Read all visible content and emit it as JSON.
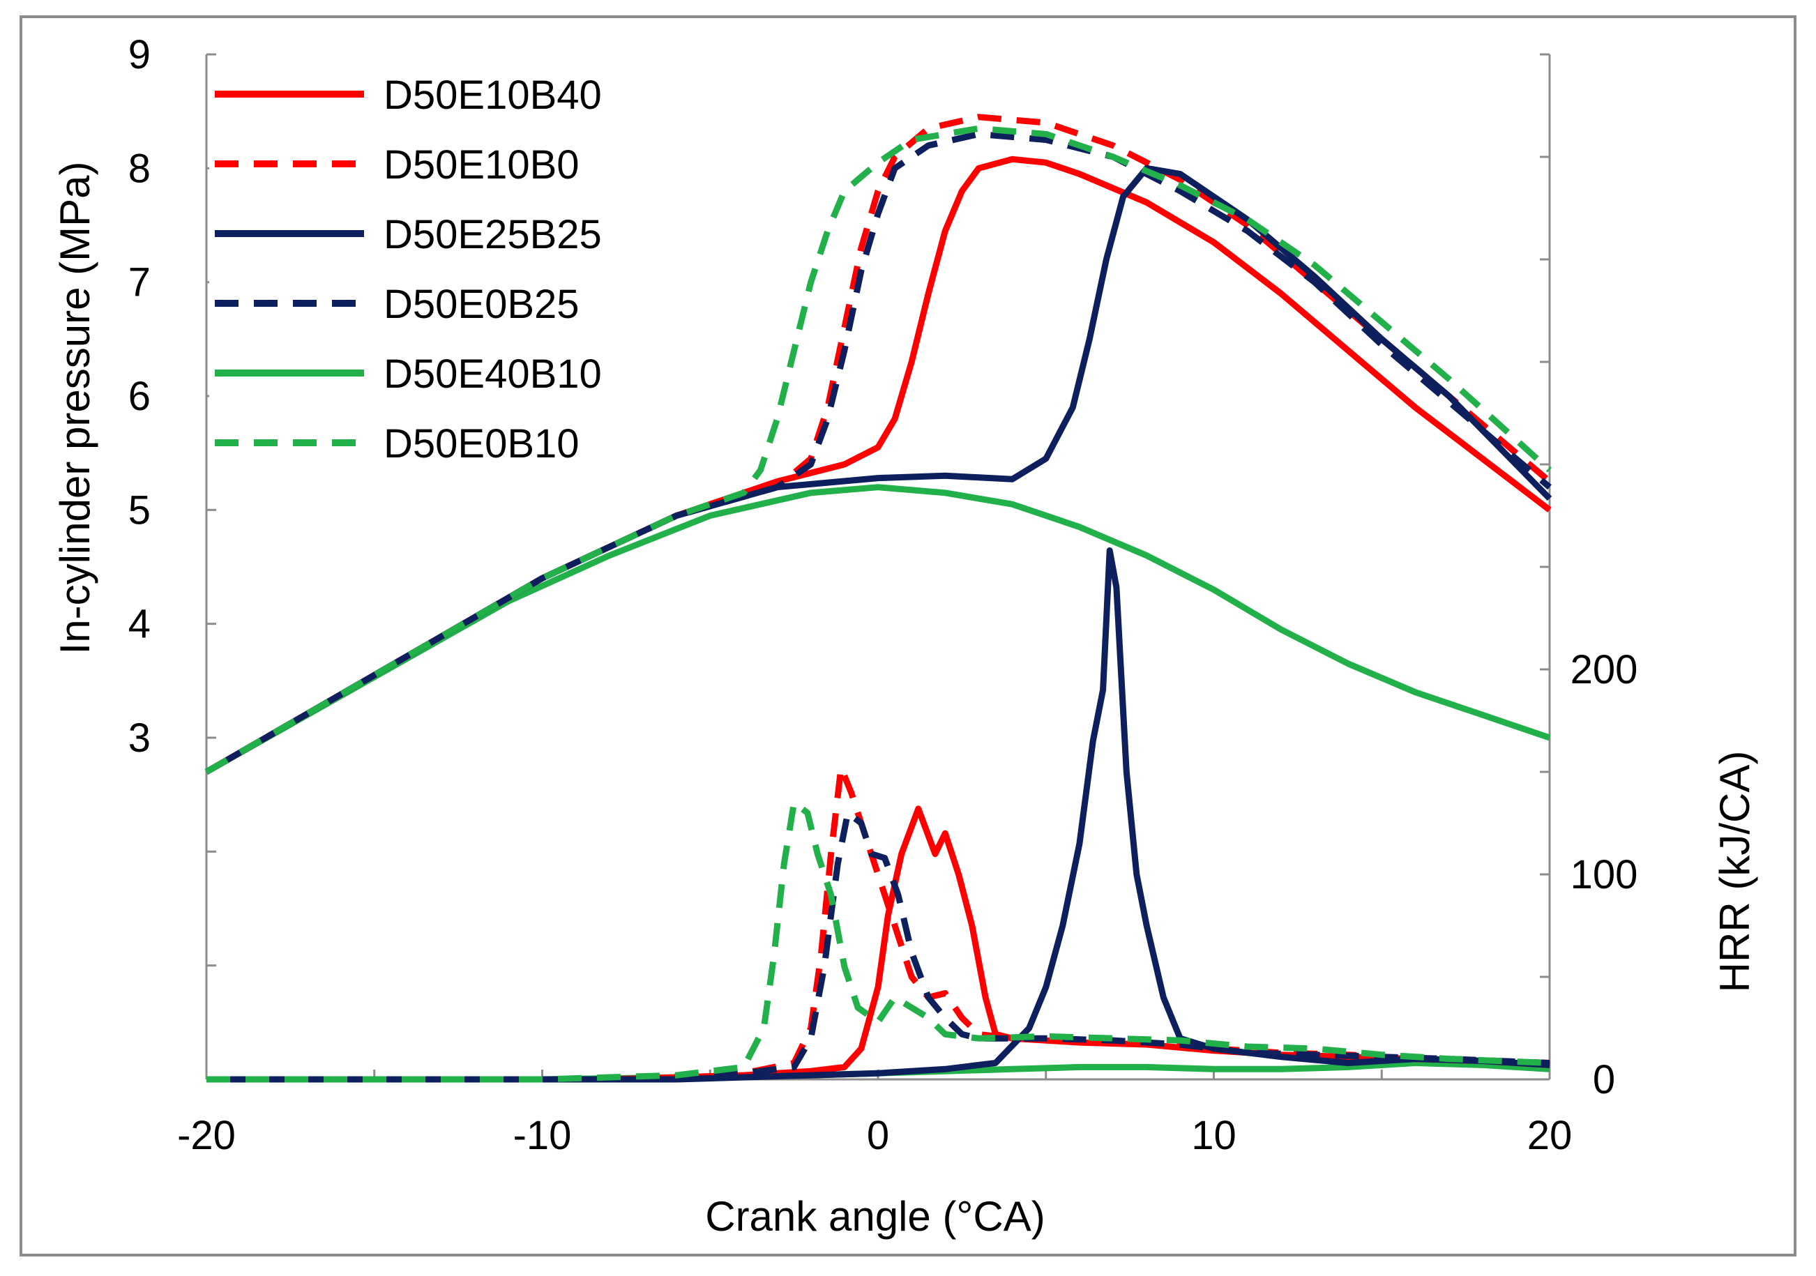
{
  "chart_data": {
    "type": "line",
    "title": "",
    "xlabel": "Crank angle (°CA)",
    "ylabel_left": "In-cylinder pressure (MPa)",
    "ylabel_right": "HRR (kJ/CA)",
    "xlim": [
      -20,
      20
    ],
    "xticks": [
      "-20",
      "-10",
      "0",
      "10",
      "20"
    ],
    "xtick_values": [
      -20,
      -10,
      0,
      10,
      20
    ],
    "ylim_left": [
      0,
      9
    ],
    "yticks_left": [
      "3",
      "4",
      "5",
      "6",
      "7",
      "8",
      "9"
    ],
    "ytick_values_left": [
      3,
      4,
      5,
      6,
      7,
      8,
      9
    ],
    "ylim_right": [
      0,
      500
    ],
    "yticks_right": [
      "0",
      "100",
      "200"
    ],
    "ytick_values_right": [
      0,
      100,
      200
    ],
    "legend_position": "top-left",
    "series": [
      {
        "name": "D50E10B40",
        "color": "#ff0000",
        "dash": "solid",
        "pressure": [
          [
            -20,
            2.7
          ],
          [
            -15,
            3.55
          ],
          [
            -10,
            4.4
          ],
          [
            -6,
            4.95
          ],
          [
            -3,
            5.25
          ],
          [
            -1,
            5.4
          ],
          [
            0,
            5.55
          ],
          [
            0.5,
            5.8
          ],
          [
            1,
            6.3
          ],
          [
            1.5,
            6.9
          ],
          [
            2,
            7.45
          ],
          [
            2.5,
            7.8
          ],
          [
            3,
            8.0
          ],
          [
            4,
            8.08
          ],
          [
            5,
            8.05
          ],
          [
            6,
            7.95
          ],
          [
            8,
            7.7
          ],
          [
            10,
            7.35
          ],
          [
            12,
            6.9
          ],
          [
            14,
            6.4
          ],
          [
            16,
            5.9
          ],
          [
            18,
            5.45
          ],
          [
            20,
            5.0
          ]
        ],
        "hrr": [
          [
            -20,
            0
          ],
          [
            -8,
            0
          ],
          [
            -4,
            2
          ],
          [
            -2,
            4
          ],
          [
            -1,
            6
          ],
          [
            -0.5,
            15
          ],
          [
            0,
            45
          ],
          [
            0.3,
            80
          ],
          [
            0.7,
            110
          ],
          [
            1.2,
            132
          ],
          [
            1.7,
            110
          ],
          [
            2,
            120
          ],
          [
            2.4,
            100
          ],
          [
            2.8,
            75
          ],
          [
            3.2,
            40
          ],
          [
            3.5,
            22
          ],
          [
            4,
            20
          ],
          [
            6,
            18
          ],
          [
            8,
            17
          ],
          [
            10,
            14
          ],
          [
            12,
            12
          ],
          [
            14,
            11
          ],
          [
            16,
            10
          ],
          [
            18,
            9
          ],
          [
            20,
            7
          ]
        ]
      },
      {
        "name": "D50E10B0",
        "color": "#ff0000",
        "dash": "dashed",
        "pressure": [
          [
            -20,
            2.7
          ],
          [
            -15,
            3.55
          ],
          [
            -10,
            4.4
          ],
          [
            -6,
            4.95
          ],
          [
            -3,
            5.2
          ],
          [
            -2,
            5.45
          ],
          [
            -1.5,
            5.9
          ],
          [
            -1,
            6.6
          ],
          [
            -0.5,
            7.3
          ],
          [
            0,
            7.8
          ],
          [
            0.5,
            8.1
          ],
          [
            1.5,
            8.35
          ],
          [
            3,
            8.45
          ],
          [
            5,
            8.4
          ],
          [
            7,
            8.2
          ],
          [
            9,
            7.9
          ],
          [
            11,
            7.5
          ],
          [
            13,
            7.0
          ],
          [
            15,
            6.5
          ],
          [
            17,
            6.0
          ],
          [
            20,
            5.25
          ]
        ],
        "hrr": [
          [
            -20,
            0
          ],
          [
            -8,
            0
          ],
          [
            -4,
            3
          ],
          [
            -2.5,
            8
          ],
          [
            -2,
            25
          ],
          [
            -1.7,
            60
          ],
          [
            -1.4,
            110
          ],
          [
            -1.1,
            152
          ],
          [
            -0.8,
            140
          ],
          [
            -0.4,
            120
          ],
          [
            0,
            100
          ],
          [
            0.5,
            75
          ],
          [
            1,
            50
          ],
          [
            1.5,
            40
          ],
          [
            2,
            42
          ],
          [
            2.5,
            30
          ],
          [
            3,
            22
          ],
          [
            4,
            20
          ],
          [
            6,
            19
          ],
          [
            8,
            18
          ],
          [
            10,
            15
          ],
          [
            12,
            13
          ],
          [
            14,
            12
          ],
          [
            16,
            10
          ],
          [
            18,
            9
          ],
          [
            20,
            8
          ]
        ]
      },
      {
        "name": "D50E25B25",
        "color": "#0d1f5c",
        "dash": "solid",
        "pressure": [
          [
            -20,
            2.7
          ],
          [
            -15,
            3.55
          ],
          [
            -10,
            4.4
          ],
          [
            -6,
            4.95
          ],
          [
            -3,
            5.2
          ],
          [
            0,
            5.28
          ],
          [
            2,
            5.3
          ],
          [
            4,
            5.27
          ],
          [
            5,
            5.45
          ],
          [
            5.8,
            5.9
          ],
          [
            6.3,
            6.5
          ],
          [
            6.8,
            7.2
          ],
          [
            7.3,
            7.75
          ],
          [
            8,
            8.0
          ],
          [
            9,
            7.95
          ],
          [
            11,
            7.55
          ],
          [
            13,
            7.05
          ],
          [
            15,
            6.5
          ],
          [
            17,
            6.0
          ],
          [
            20,
            5.1
          ]
        ],
        "hrr": [
          [
            -20,
            0
          ],
          [
            -6,
            0
          ],
          [
            -2,
            2
          ],
          [
            0,
            3
          ],
          [
            2,
            5
          ],
          [
            3.5,
            8
          ],
          [
            4.5,
            25
          ],
          [
            5,
            45
          ],
          [
            5.5,
            75
          ],
          [
            6,
            115
          ],
          [
            6.4,
            165
          ],
          [
            6.7,
            190
          ],
          [
            6.9,
            258
          ],
          [
            7.1,
            240
          ],
          [
            7.4,
            150
          ],
          [
            7.7,
            100
          ],
          [
            8,
            75
          ],
          [
            8.5,
            40
          ],
          [
            9,
            20
          ],
          [
            10,
            15
          ],
          [
            12,
            11
          ],
          [
            14,
            8
          ],
          [
            16,
            10
          ],
          [
            18,
            9
          ],
          [
            20,
            7
          ]
        ]
      },
      {
        "name": "D50E0B25",
        "color": "#0d1f5c",
        "dash": "dashed",
        "pressure": [
          [
            -20,
            2.7
          ],
          [
            -15,
            3.55
          ],
          [
            -10,
            4.4
          ],
          [
            -6,
            4.95
          ],
          [
            -3,
            5.2
          ],
          [
            -2,
            5.4
          ],
          [
            -1.5,
            5.8
          ],
          [
            -1,
            6.4
          ],
          [
            -0.5,
            7.1
          ],
          [
            0,
            7.6
          ],
          [
            0.5,
            8.0
          ],
          [
            1.5,
            8.2
          ],
          [
            3,
            8.3
          ],
          [
            5,
            8.25
          ],
          [
            7,
            8.1
          ],
          [
            9,
            7.8
          ],
          [
            11,
            7.45
          ],
          [
            13,
            7.0
          ],
          [
            15,
            6.45
          ],
          [
            17,
            5.95
          ],
          [
            20,
            5.2
          ]
        ],
        "hrr": [
          [
            -20,
            0
          ],
          [
            -8,
            0
          ],
          [
            -4,
            3
          ],
          [
            -2.5,
            6
          ],
          [
            -2,
            20
          ],
          [
            -1.6,
            55
          ],
          [
            -1.2,
            105
          ],
          [
            -0.9,
            130
          ],
          [
            -0.5,
            125
          ],
          [
            -0.2,
            110
          ],
          [
            0.2,
            108
          ],
          [
            0.6,
            90
          ],
          [
            1,
            62
          ],
          [
            1.5,
            40
          ],
          [
            2,
            30
          ],
          [
            2.5,
            22
          ],
          [
            3,
            20
          ],
          [
            5,
            20
          ],
          [
            7,
            19
          ],
          [
            9,
            17
          ],
          [
            11,
            13
          ],
          [
            13,
            12
          ],
          [
            15,
            11
          ],
          [
            17,
            10
          ],
          [
            20,
            8
          ]
        ]
      },
      {
        "name": "D50E40B10",
        "color": "#22b04a",
        "dash": "solid",
        "pressure": [
          [
            -20,
            2.7
          ],
          [
            -17,
            3.2
          ],
          [
            -14,
            3.7
          ],
          [
            -11,
            4.2
          ],
          [
            -8,
            4.6
          ],
          [
            -5,
            4.95
          ],
          [
            -2,
            5.15
          ],
          [
            0,
            5.2
          ],
          [
            2,
            5.15
          ],
          [
            4,
            5.05
          ],
          [
            6,
            4.85
          ],
          [
            8,
            4.6
          ],
          [
            10,
            4.3
          ],
          [
            12,
            3.95
          ],
          [
            14,
            3.65
          ],
          [
            16,
            3.4
          ],
          [
            18,
            3.2
          ],
          [
            20,
            3.0
          ]
        ],
        "hrr": [
          [
            -20,
            0
          ],
          [
            -10,
            0
          ],
          [
            -6,
            1
          ],
          [
            -2,
            2
          ],
          [
            0,
            3
          ],
          [
            2,
            4
          ],
          [
            4,
            5
          ],
          [
            6,
            6
          ],
          [
            8,
            6
          ],
          [
            10,
            5
          ],
          [
            12,
            5
          ],
          [
            14,
            6
          ],
          [
            16,
            8
          ],
          [
            18,
            7
          ],
          [
            20,
            5
          ]
        ]
      },
      {
        "name": "D50E0B10",
        "color": "#22b04a",
        "dash": "dashed",
        "pressure": [
          [
            -20,
            2.7
          ],
          [
            -15,
            3.55
          ],
          [
            -10,
            4.4
          ],
          [
            -6,
            4.95
          ],
          [
            -4,
            5.15
          ],
          [
            -3.5,
            5.35
          ],
          [
            -3,
            5.8
          ],
          [
            -2.5,
            6.4
          ],
          [
            -2,
            7.0
          ],
          [
            -1.5,
            7.45
          ],
          [
            -1,
            7.8
          ],
          [
            0,
            8.05
          ],
          [
            1,
            8.25
          ],
          [
            3,
            8.35
          ],
          [
            5,
            8.3
          ],
          [
            7,
            8.1
          ],
          [
            9,
            7.85
          ],
          [
            11,
            7.55
          ],
          [
            13,
            7.15
          ],
          [
            15,
            6.65
          ],
          [
            17,
            6.15
          ],
          [
            20,
            5.35
          ]
        ],
        "hrr": [
          [
            -20,
            0
          ],
          [
            -10,
            0
          ],
          [
            -6,
            2
          ],
          [
            -4,
            6
          ],
          [
            -3.4,
            25
          ],
          [
            -3.1,
            60
          ],
          [
            -2.8,
            105
          ],
          [
            -2.5,
            135
          ],
          [
            -2.1,
            130
          ],
          [
            -1.8,
            110
          ],
          [
            -1.4,
            90
          ],
          [
            -1,
            55
          ],
          [
            -0.6,
            35
          ],
          [
            0,
            28
          ],
          [
            0.5,
            40
          ],
          [
            1,
            35
          ],
          [
            1.5,
            30
          ],
          [
            2,
            22
          ],
          [
            3,
            20
          ],
          [
            5,
            21
          ],
          [
            7,
            20
          ],
          [
            9,
            19
          ],
          [
            11,
            16
          ],
          [
            13,
            15
          ],
          [
            15,
            12
          ],
          [
            17,
            10
          ],
          [
            20,
            8
          ]
        ]
      }
    ]
  }
}
